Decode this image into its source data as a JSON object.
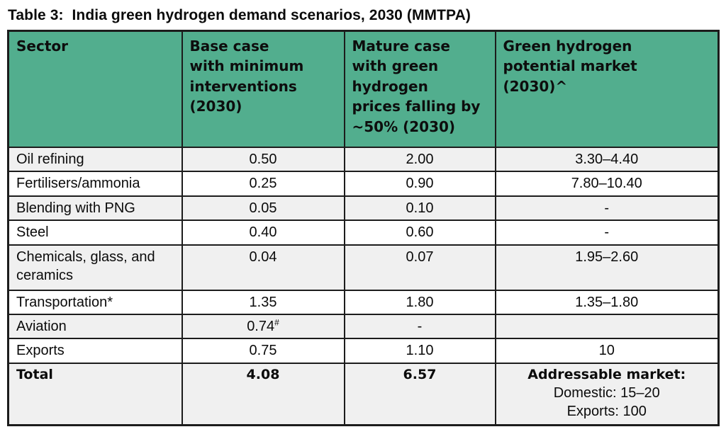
{
  "title": "Table 3:  India green hydrogen demand scenarios, 2030 (MMTPA)",
  "colors": {
    "page_bg": "#FFFFFF",
    "header_bg": "#52AE8E",
    "alt_row_bg": "#F0F0F0",
    "border": "#1C1C1C"
  },
  "table": {
    "headers": [
      "Sector",
      "Base case\nwith minimum\ninterventions\n(2030)",
      "Mature case\nwith green\nhydrogen\nprices falling by\n~50% (2030)",
      "Green hydrogen\npotential market\n(2030)^"
    ],
    "rows": [
      {
        "sector": "Oil refining",
        "base": "0.50",
        "mature": "2.00",
        "potential": "3.30–4.40"
      },
      {
        "sector": "Fertilisers/ammonia",
        "base": "0.25",
        "mature": "0.90",
        "potential": "7.80–10.40"
      },
      {
        "sector": "Blending with PNG",
        "base": "0.05",
        "mature": "0.10",
        "potential": "-"
      },
      {
        "sector": "Steel",
        "base": "0.40",
        "mature": "0.60",
        "potential": "-"
      },
      {
        "sector": "Chemicals, glass, and ceramics",
        "base": "0.04",
        "mature": "0.07",
        "potential": "1.95–2.60"
      },
      {
        "sector": "Transportation*",
        "base": "1.35",
        "mature": "1.80",
        "potential": "1.35–1.80"
      },
      {
        "sector": "Aviation",
        "base": "0.74",
        "base_sup": "#",
        "mature": "-",
        "potential": ""
      },
      {
        "sector": "Exports",
        "base": "0.75",
        "mature": "1.10",
        "potential": "10"
      }
    ],
    "total_row": {
      "sector": "Total",
      "base": "4.08",
      "mature": "6.57",
      "potential_heading": "Addressable market:",
      "potential_lines": [
        "Domestic: 15–20",
        "Exports: 100"
      ]
    }
  }
}
